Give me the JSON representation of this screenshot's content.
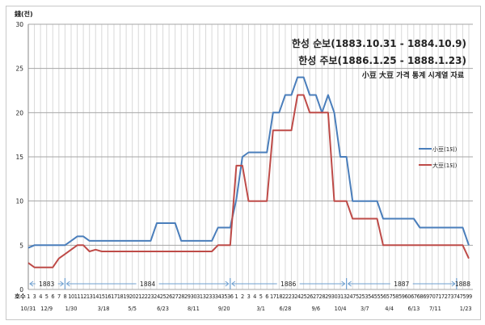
{
  "chart_data": {
    "type": "line",
    "ylabel": "錢(전)",
    "ylim": [
      0,
      30
    ],
    "yticks": [
      0,
      5,
      10,
      15,
      20,
      25,
      30
    ],
    "grid": true,
    "legend_position": "right",
    "xlabel_prefix": "호수",
    "title_lines": [
      "한성 순보(1883.10.31 - 1884.10.9)",
      "한성 주보(1886.1.25 - 1888.1.23)",
      "小豆 大豆 가격 통계 시계열 자료"
    ],
    "categories": [
      "1",
      "3",
      "4",
      "5",
      "6",
      "7",
      "8",
      "10",
      "11",
      "12",
      "13",
      "14",
      "15",
      "16",
      "17",
      "18",
      "19",
      "20",
      "21",
      "22",
      "23",
      "24",
      "25",
      "26",
      "27",
      "28",
      "29",
      "30",
      "31",
      "32",
      "33",
      "34",
      "35",
      "36",
      "1",
      "2",
      "3",
      "4",
      "5",
      "6",
      "17",
      "18",
      "22",
      "23",
      "24",
      "25",
      "26",
      "27",
      "28",
      "29",
      "30",
      "31",
      "32",
      "47",
      "52",
      "53",
      "54",
      "55",
      "56",
      "57",
      "58",
      "59",
      "60",
      "67",
      "68",
      "69",
      "70",
      "71",
      "72",
      "73",
      "74",
      "75",
      "99"
    ],
    "dates": [
      "10/31",
      "12/9",
      "1/30",
      "3/18",
      "5/5",
      "6/23",
      "8/11",
      "9/20",
      "3/1",
      "6/28",
      "9/6",
      "10/4",
      "3/7",
      "4/4",
      "6/13",
      "7/11",
      "1/23"
    ],
    "years": [
      "1883",
      "1884",
      "1886",
      "1887",
      "1888"
    ],
    "series": [
      {
        "name": "小豆(1되)",
        "color": "#4a7ebb",
        "values": [
          4.7,
          5,
          5,
          5,
          5,
          5,
          5,
          5.5,
          6,
          6,
          5.5,
          5.5,
          5.5,
          5.5,
          5.5,
          5.5,
          5.5,
          5.5,
          5.5,
          5.5,
          5.5,
          7.5,
          7.5,
          7.5,
          7.5,
          5.5,
          5.5,
          5.5,
          5.5,
          5.5,
          5.5,
          7,
          7,
          7,
          10.2,
          15,
          15.5,
          15.5,
          15.5,
          15.5,
          20,
          20,
          22,
          22,
          24,
          24,
          22,
          22,
          20,
          22,
          20,
          15,
          15,
          10,
          10,
          10,
          10,
          10,
          8,
          8,
          8,
          8,
          8,
          8,
          7,
          7,
          7,
          7,
          7,
          7,
          7,
          7,
          5
        ]
      },
      {
        "name": "大豆(1되)",
        "color": "#be4b48",
        "values": [
          3,
          2.5,
          2.5,
          2.5,
          2.5,
          3.5,
          4,
          4.5,
          5,
          5,
          4.3,
          4.5,
          4.3,
          4.3,
          4.3,
          4.3,
          4.3,
          4.3,
          4.3,
          4.3,
          4.3,
          4.3,
          4.3,
          4.3,
          4.3,
          4.3,
          4.3,
          4.3,
          4.3,
          4.3,
          4.3,
          5,
          5,
          5,
          14,
          14,
          10,
          10,
          10,
          10,
          18,
          18,
          18,
          18,
          22,
          22,
          20,
          20,
          20,
          20,
          10,
          10,
          10,
          8,
          8,
          8,
          8,
          8,
          5,
          5,
          5,
          5,
          5,
          5,
          5,
          5,
          5,
          5,
          5,
          5,
          5,
          5,
          3.5
        ]
      }
    ]
  }
}
